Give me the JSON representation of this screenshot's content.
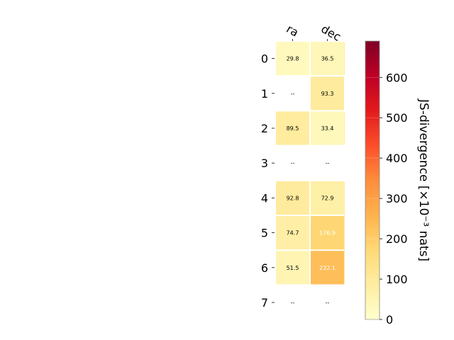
{
  "chart_data": {
    "type": "heatmap",
    "columns": [
      "ra",
      "dec"
    ],
    "rows": [
      "0",
      "1",
      "2",
      "3",
      "4",
      "5",
      "6",
      "7"
    ],
    "values": [
      [
        29.8,
        36.5
      ],
      [
        null,
        93.3
      ],
      [
        89.5,
        33.4
      ],
      [
        null,
        null
      ],
      [
        92.8,
        72.9
      ],
      [
        74.7,
        176.9
      ],
      [
        51.5,
        232.1
      ],
      [
        null,
        null
      ]
    ],
    "cell_labels": [
      [
        "29.8",
        "36.5"
      ],
      [
        "--",
        "93.3"
      ],
      [
        "89.5",
        "33.4"
      ],
      [
        "--",
        "--"
      ],
      [
        "92.8",
        "72.9"
      ],
      [
        "74.7",
        "176.9"
      ],
      [
        "51.5",
        "232.1"
      ],
      [
        "--",
        "--"
      ]
    ],
    "colorbar": {
      "label": "JS-divergence [×10⁻³ nats]",
      "min": 0,
      "max": 690,
      "ticks": [
        0,
        100,
        200,
        300,
        400,
        500,
        600
      ],
      "colormap": "YlOrRd"
    }
  }
}
